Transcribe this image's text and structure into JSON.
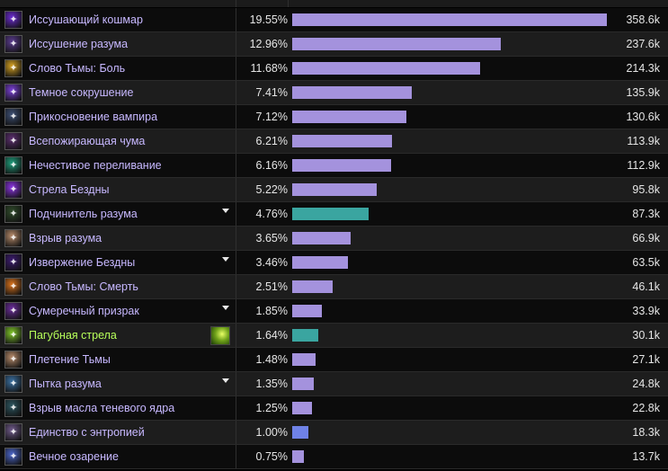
{
  "colors": {
    "bar_default": "#a492dd",
    "bar_highlight": "#3aa5a0",
    "bar_special": "#6f82e6",
    "name_default": "#c7b8ff",
    "name_highlight": "#b7ff5a"
  },
  "max_amount": 358.6,
  "rows": [
    {
      "name": "Иссушающий кошмар",
      "pct": "19.55%",
      "amount": "358.6k",
      "value": 358.6,
      "icon": "withering-nightmare-icon",
      "icon_color": "#6b2bd1",
      "caret": false,
      "highlight": false,
      "bar": "default"
    },
    {
      "name": "Иссушение разума",
      "pct": "12.96%",
      "amount": "237.6k",
      "value": 237.6,
      "icon": "mind-flay-icon",
      "icon_color": "#5a3b8e",
      "caret": false,
      "highlight": false,
      "bar": "default"
    },
    {
      "name": "Слово Тьмы: Боль",
      "pct": "11.68%",
      "amount": "214.3k",
      "value": 214.3,
      "icon": "shadow-word-pain-icon",
      "icon_color": "#d4a022",
      "caret": false,
      "highlight": false,
      "bar": "default"
    },
    {
      "name": "Темное сокрушение",
      "pct": "7.41%",
      "amount": "135.9k",
      "value": 135.9,
      "icon": "dark-void-icon",
      "icon_color": "#7a3fd6",
      "caret": false,
      "highlight": false,
      "bar": "default"
    },
    {
      "name": "Прикосновение вампира",
      "pct": "7.12%",
      "amount": "130.6k",
      "value": 130.6,
      "icon": "vampiric-touch-icon",
      "icon_color": "#3d4f73",
      "caret": false,
      "highlight": false,
      "bar": "default"
    },
    {
      "name": "Всепожирающая чума",
      "pct": "6.21%",
      "amount": "113.9k",
      "value": 113.9,
      "icon": "devouring-plague-icon",
      "icon_color": "#5b2e6e",
      "caret": false,
      "highlight": false,
      "bar": "default"
    },
    {
      "name": "Нечестивое переливание",
      "pct": "6.16%",
      "amount": "112.9k",
      "value": 112.9,
      "icon": "unholy-transfusion-icon",
      "icon_color": "#1f9c7a",
      "caret": false,
      "highlight": false,
      "bar": "default"
    },
    {
      "name": "Стрела Бездны",
      "pct": "5.22%",
      "amount": "95.8k",
      "value": 95.8,
      "icon": "void-bolt-icon",
      "icon_color": "#8a33e0",
      "caret": false,
      "highlight": false,
      "bar": "default"
    },
    {
      "name": "Подчинитель разума",
      "pct": "4.76%",
      "amount": "87.3k",
      "value": 87.3,
      "icon": "mindbender-icon",
      "icon_color": "#2f4a2a",
      "caret": true,
      "highlight": false,
      "bar": "highlight"
    },
    {
      "name": "Взрыв разума",
      "pct": "3.65%",
      "amount": "66.9k",
      "value": 66.9,
      "icon": "mind-blast-icon",
      "icon_color": "#b58a6a",
      "caret": false,
      "highlight": false,
      "bar": "default"
    },
    {
      "name": "Извержение Бездны",
      "pct": "3.46%",
      "amount": "63.5k",
      "value": 63.5,
      "icon": "void-eruption-icon",
      "icon_color": "#3b1a6e",
      "caret": true,
      "highlight": false,
      "bar": "default"
    },
    {
      "name": "Слово Тьмы: Смерть",
      "pct": "2.51%",
      "amount": "46.1k",
      "value": 46.1,
      "icon": "shadow-word-death-icon",
      "icon_color": "#d8721c",
      "caret": false,
      "highlight": false,
      "bar": "default"
    },
    {
      "name": "Сумеречный призрак",
      "pct": "1.85%",
      "amount": "33.9k",
      "value": 33.9,
      "icon": "shadowy-apparition-icon",
      "icon_color": "#6a2c9a",
      "caret": true,
      "highlight": false,
      "bar": "default"
    },
    {
      "name": "Пагубная стрела",
      "pct": "1.64%",
      "amount": "30.1k",
      "value": 30.1,
      "icon": "baleful-bolt-icon",
      "icon_color": "#7fc52a",
      "caret": false,
      "highlight": true,
      "bar": "highlight"
    },
    {
      "name": "Плетение Тьмы",
      "pct": "1.48%",
      "amount": "27.1k",
      "value": 27.1,
      "icon": "shadow-weaving-icon",
      "icon_color": "#b58a6a",
      "caret": false,
      "highlight": false,
      "bar": "default"
    },
    {
      "name": "Пытка разума",
      "pct": "1.35%",
      "amount": "24.8k",
      "value": 24.8,
      "icon": "mind-sear-icon",
      "icon_color": "#3a6fa0",
      "caret": true,
      "highlight": false,
      "bar": "default"
    },
    {
      "name": "Взрыв масла теневого ядра",
      "pct": "1.25%",
      "amount": "22.8k",
      "value": 22.8,
      "icon": "shadowcore-oil-icon",
      "icon_color": "#2d5660",
      "caret": false,
      "highlight": false,
      "bar": "default"
    },
    {
      "name": "Единство с энтропией",
      "pct": "1.00%",
      "amount": "18.3k",
      "value": 18.3,
      "icon": "entropic-unity-icon",
      "icon_color": "#6f5a8a",
      "caret": false,
      "highlight": false,
      "bar": "special"
    },
    {
      "name": "Вечное озарение",
      "pct": "0.75%",
      "amount": "13.7k",
      "value": 13.7,
      "icon": "eternal-insight-icon",
      "icon_color": "#4b66c9",
      "caret": false,
      "highlight": false,
      "bar": "default"
    }
  ]
}
